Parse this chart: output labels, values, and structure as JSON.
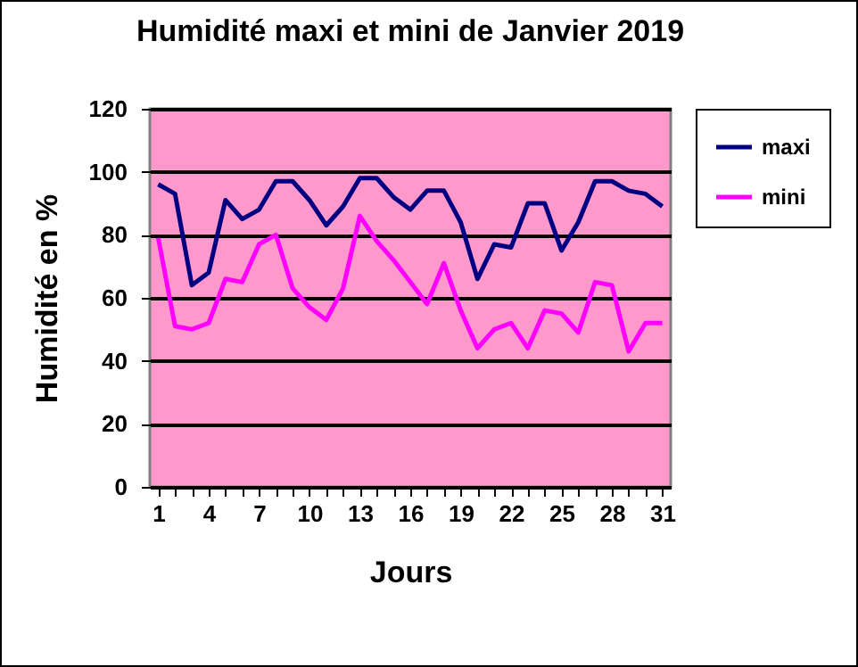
{
  "chart_data": {
    "type": "line",
    "title": "Humidité maxi et mini de Janvier 2019",
    "xlabel": "Jours",
    "ylabel": "Humidité en %",
    "x": [
      1,
      2,
      3,
      4,
      5,
      6,
      7,
      8,
      9,
      10,
      11,
      12,
      13,
      14,
      15,
      16,
      17,
      18,
      19,
      20,
      21,
      22,
      23,
      24,
      25,
      26,
      27,
      28,
      29,
      30,
      31
    ],
    "series": [
      {
        "name": "maxi",
        "color": "#000080",
        "values": [
          96,
          93,
          64,
          68,
          91,
          85,
          88,
          97,
          97,
          91,
          83,
          89,
          98,
          98,
          92,
          88,
          94,
          94,
          84,
          66,
          77,
          76,
          90,
          90,
          75,
          84,
          97,
          97,
          94,
          93,
          89
        ]
      },
      {
        "name": "mini",
        "color": "#ff00ff",
        "values": [
          79,
          51,
          50,
          52,
          66,
          65,
          77,
          80,
          63,
          57,
          53,
          63,
          86,
          78,
          72,
          65,
          58,
          71,
          56,
          44,
          50,
          52,
          44,
          56,
          55,
          49,
          65,
          64,
          43,
          52,
          52
        ]
      }
    ],
    "xlim": [
      0.5,
      31.5
    ],
    "xticks": [
      1,
      {
        "value": 2,
        "label": null
      },
      {
        "value": 3,
        "label": null
      },
      4,
      {
        "value": 5,
        "label": null
      },
      {
        "value": 6,
        "label": null
      },
      7,
      {
        "value": 8,
        "label": null
      },
      {
        "value": 9,
        "label": null
      },
      10,
      {
        "value": 11,
        "label": null
      },
      {
        "value": 12,
        "label": null
      },
      13,
      {
        "value": 14,
        "label": null
      },
      {
        "value": 15,
        "label": null
      },
      16,
      {
        "value": 17,
        "label": null
      },
      {
        "value": 18,
        "label": null
      },
      19,
      {
        "value": 20,
        "label": null
      },
      {
        "value": 21,
        "label": null
      },
      22,
      {
        "value": 23,
        "label": null
      },
      {
        "value": 24,
        "label": null
      },
      25,
      {
        "value": 26,
        "label": null
      },
      {
        "value": 27,
        "label": null
      },
      28,
      {
        "value": 29,
        "label": null
      },
      {
        "value": 30,
        "label": null
      },
      31
    ],
    "ylim": [
      0,
      120
    ],
    "yticks": [
      0,
      20,
      40,
      60,
      80,
      100,
      120
    ],
    "grid": "y",
    "legend": "right",
    "marker": "none",
    "line_style": "solid"
  }
}
